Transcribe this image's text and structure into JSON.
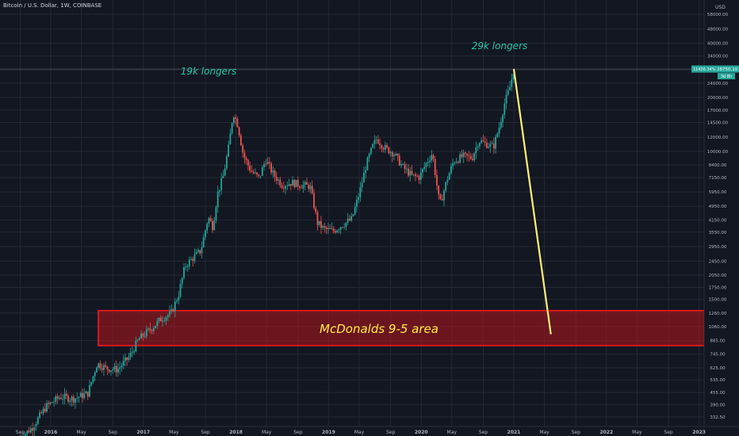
{
  "chart_data": {
    "type": "candlestick",
    "title": "Bitcoin / U.S. Dollar, 1W, COINBASE",
    "y_unit": "USD",
    "y_scale": "log",
    "y_tick_labels": [
      "68000.00",
      "58000.00",
      "48000.00",
      "40000.00",
      "34000.00",
      "28400.00",
      "24000.00",
      "20000.00",
      "17000.00",
      "14500.00",
      "12000.00",
      "10000.00",
      "8400.00",
      "7150.00",
      "5950.00",
      "4950.00",
      "4150.00",
      "3550.00",
      "2950.00",
      "2450.00",
      "2050.00",
      "1750.00",
      "1500.00",
      "1260.00",
      "1060.00",
      "885.00",
      "745.00",
      "625.00",
      "535.00",
      "455.00",
      "390.00",
      "332.50"
    ],
    "x_tick_labels": [
      "Sep",
      "2016",
      "May",
      "Sep",
      "2017",
      "May",
      "Sep",
      "2018",
      "May",
      "Sep",
      "2019",
      "May",
      "Sep",
      "2020",
      "May",
      "Sep",
      "2021",
      "May",
      "Sep",
      "2022",
      "May",
      "Sep",
      "2023"
    ],
    "price_label": "28750.10",
    "change_label": "11426.34%",
    "countdown_label": "3d 8h",
    "series": [
      {
        "values": [
          [
            2015.65,
            250
          ],
          [
            2015.8,
            290
          ],
          [
            2015.95,
            380
          ],
          [
            2016.1,
            430
          ],
          [
            2016.25,
            420
          ],
          [
            2016.4,
            450
          ],
          [
            2016.5,
            660
          ],
          [
            2016.6,
            620
          ],
          [
            2016.72,
            610
          ],
          [
            2016.85,
            720
          ],
          [
            2016.95,
            900
          ],
          [
            2017.1,
            1050
          ],
          [
            2017.2,
            1180
          ],
          [
            2017.3,
            1250
          ],
          [
            2017.38,
            1600
          ],
          [
            2017.45,
            2300
          ],
          [
            2017.55,
            2600
          ],
          [
            2017.62,
            2800
          ],
          [
            2017.7,
            4300
          ],
          [
            2017.75,
            3800
          ],
          [
            2017.8,
            5800
          ],
          [
            2017.86,
            7200
          ],
          [
            2017.92,
            10500
          ],
          [
            2017.97,
            16500
          ],
          [
            2018.02,
            14000
          ],
          [
            2018.08,
            9500
          ],
          [
            2018.16,
            7800
          ],
          [
            2018.25,
            7100
          ],
          [
            2018.32,
            9000
          ],
          [
            2018.4,
            7500
          ],
          [
            2018.5,
            6500
          ],
          [
            2018.6,
            6700
          ],
          [
            2018.7,
            6500
          ],
          [
            2018.8,
            6400
          ],
          [
            2018.88,
            4000
          ],
          [
            2018.95,
            3700
          ],
          [
            2019.05,
            3600
          ],
          [
            2019.15,
            3900
          ],
          [
            2019.25,
            4200
          ],
          [
            2019.33,
            5800
          ],
          [
            2019.4,
            8200
          ],
          [
            2019.47,
            10500
          ],
          [
            2019.52,
            11800
          ],
          [
            2019.6,
            10500
          ],
          [
            2019.7,
            9800
          ],
          [
            2019.8,
            8200
          ],
          [
            2019.9,
            7300
          ],
          [
            2019.98,
            7200
          ],
          [
            2020.05,
            8500
          ],
          [
            2020.12,
            9800
          ],
          [
            2020.2,
            5000
          ],
          [
            2020.28,
            7000
          ],
          [
            2020.35,
            8800
          ],
          [
            2020.45,
            9400
          ],
          [
            2020.55,
            9200
          ],
          [
            2020.62,
            11500
          ],
          [
            2020.7,
            11000
          ],
          [
            2020.78,
            10600
          ],
          [
            2020.84,
            13500
          ],
          [
            2020.9,
            18500
          ],
          [
            2020.96,
            23000
          ],
          [
            2021.0,
            28750
          ]
        ]
      }
    ],
    "annotations": [
      "19k longers",
      "29k longers",
      "McDonalds 9-5 area"
    ],
    "zone": {
      "label": "McDonalds 9-5 area",
      "price_low": 830,
      "price_high": 1300,
      "color": "#ff0000"
    },
    "projection": {
      "from": [
        2021.0,
        28750
      ],
      "to": [
        2021.4,
        960
      ],
      "color": "#fff176"
    },
    "grid": true
  }
}
